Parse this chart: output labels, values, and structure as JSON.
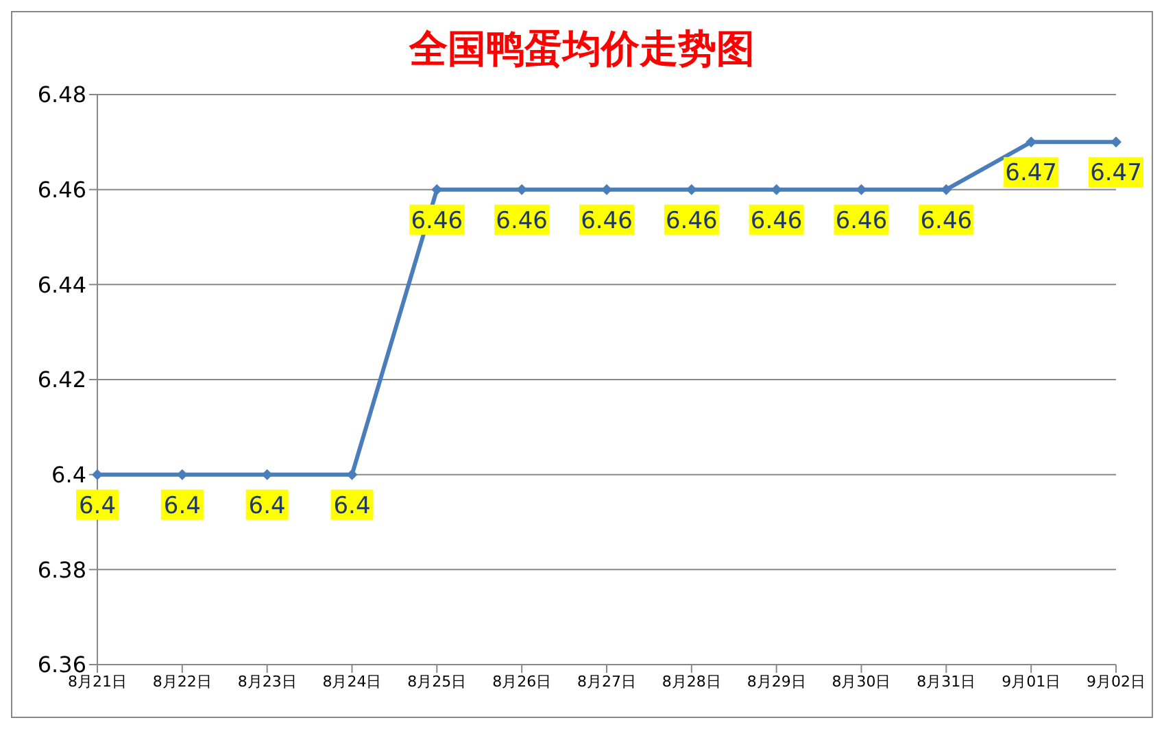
{
  "chart_data": {
    "type": "line",
    "title": "全国鸭蛋均价走势图",
    "categories": [
      "8月21日",
      "8月22日",
      "8月23日",
      "8月24日",
      "8月25日",
      "8月26日",
      "8月27日",
      "8月28日",
      "8月29日",
      "8月30日",
      "8月31日",
      "9月01日",
      "9月02日"
    ],
    "series": [
      {
        "color": "#4a7ebb",
        "values": [
          6.4,
          6.4,
          6.4,
          6.4,
          6.46,
          6.46,
          6.46,
          6.46,
          6.46,
          6.46,
          6.46,
          6.47,
          6.47
        ]
      }
    ],
    "ylim": [
      6.36,
      6.48
    ],
    "yticks": [
      6.36,
      6.38,
      6.4,
      6.42,
      6.44,
      6.46,
      6.48
    ],
    "grid": "y",
    "legend": false,
    "marker": "diamond",
    "line_style": "solid",
    "data_labels": true
  }
}
